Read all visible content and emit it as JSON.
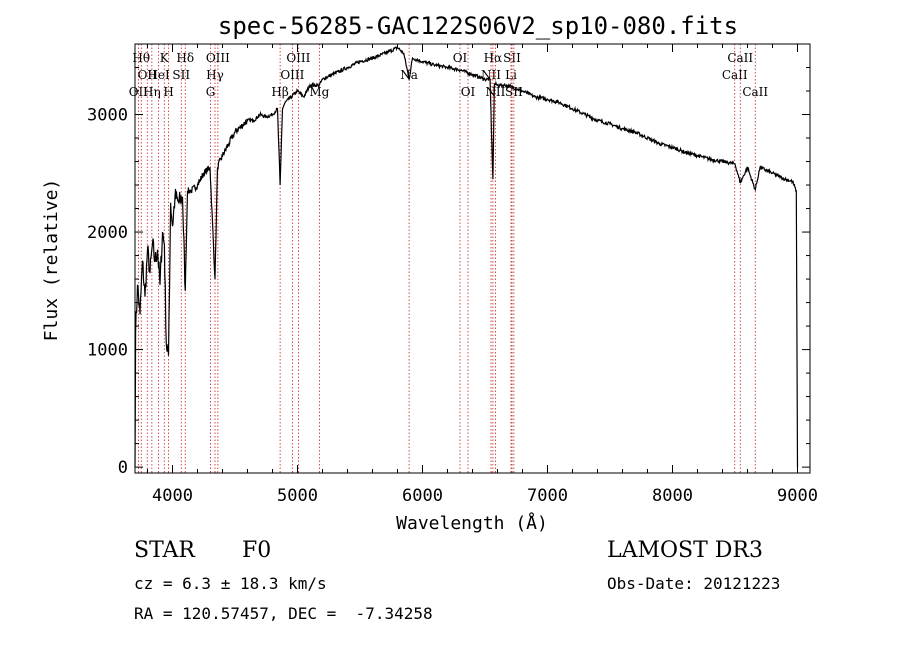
{
  "chart_data": {
    "type": "line",
    "title": "spec-56285-GAC122S06V2_sp10-080.fits",
    "xlabel": "Wavelength (Å)",
    "ylabel": "Flux (relative)",
    "xlim": [
      3700,
      9100
    ],
    "ylim": [
      -50,
      3600
    ],
    "xticks": [
      4000,
      5000,
      6000,
      7000,
      8000,
      9000
    ],
    "xtick_labels": [
      "4000",
      "5000",
      "6000",
      "7000",
      "8000",
      "9000"
    ],
    "yticks": [
      0,
      1000,
      2000,
      3000
    ],
    "ytick_labels": [
      "0",
      "1000",
      "2000",
      "3000"
    ],
    "spectrum": {
      "x": [
        3700,
        3705,
        3720,
        3740,
        3760,
        3780,
        3800,
        3820,
        3840,
        3860,
        3880,
        3900,
        3920,
        3935,
        3950,
        3968,
        3985,
        4000,
        4020,
        4050,
        4080,
        4102,
        4120,
        4150,
        4200,
        4250,
        4300,
        4340,
        4360,
        4400,
        4450,
        4500,
        4550,
        4600,
        4650,
        4700,
        4750,
        4800,
        4840,
        4861,
        4880,
        4900,
        4950,
        5000,
        5050,
        5100,
        5175,
        5200,
        5300,
        5400,
        5500,
        5600,
        5700,
        5800,
        5850,
        5893,
        5920,
        6000,
        6100,
        6200,
        6300,
        6400,
        6450,
        6500,
        6540,
        6563,
        6575,
        6600,
        6650,
        6700,
        6800,
        6900,
        7000,
        7100,
        7200,
        7300,
        7400,
        7500,
        7600,
        7700,
        7800,
        7900,
        8000,
        8100,
        8200,
        8300,
        8400,
        8500,
        8542,
        8600,
        8662,
        8700,
        8800,
        8900,
        8960,
        8990,
        9000
      ],
      "y": [
        0,
        1150,
        1550,
        1300,
        1750,
        1450,
        1850,
        1650,
        1900,
        1750,
        1850,
        1550,
        2000,
        1900,
        1050,
        950,
        2250,
        2050,
        2300,
        2250,
        2300,
        1500,
        2350,
        2350,
        2400,
        2500,
        2550,
        1600,
        2550,
        2650,
        2750,
        2850,
        2900,
        2950,
        2950,
        3000,
        2980,
        3000,
        3050,
        2400,
        3050,
        3100,
        3150,
        3200,
        3150,
        3250,
        3250,
        3300,
        3350,
        3400,
        3450,
        3480,
        3520,
        3570,
        3520,
        3300,
        3480,
        3450,
        3420,
        3400,
        3380,
        3340,
        3320,
        3300,
        3300,
        2450,
        3260,
        3250,
        3250,
        3240,
        3200,
        3150,
        3130,
        3100,
        3050,
        3000,
        2950,
        2920,
        2880,
        2850,
        2800,
        2750,
        2720,
        2680,
        2650,
        2620,
        2600,
        2580,
        2420,
        2550,
        2360,
        2550,
        2500,
        2450,
        2430,
        2350,
        0
      ]
    },
    "lines": [
      {
        "wl": 3727,
        "label": "OII",
        "row": 2
      },
      {
        "wl": 3750,
        "label": "Hθ",
        "row": 0
      },
      {
        "wl": 3798,
        "label": "OII",
        "row": 1
      },
      {
        "wl": 3835,
        "label": "Hη",
        "row": 2
      },
      {
        "wl": 3889,
        "label": "HeI",
        "row": 1
      },
      {
        "wl": 3934,
        "label": "K",
        "row": 0
      },
      {
        "wl": 3969,
        "label": "H",
        "row": 2
      },
      {
        "wl": 4070,
        "label": "SII",
        "row": 1
      },
      {
        "wl": 4102,
        "label": "Hδ",
        "row": 0
      },
      {
        "wl": 4304,
        "label": "G",
        "row": 2
      },
      {
        "wl": 4340,
        "label": "Hγ",
        "row": 1
      },
      {
        "wl": 4363,
        "label": "OIII",
        "row": 0
      },
      {
        "wl": 4861,
        "label": "Hβ",
        "row": 2
      },
      {
        "wl": 4959,
        "label": "OIII",
        "row": 1
      },
      {
        "wl": 5007,
        "label": "OIII",
        "row": 0
      },
      {
        "wl": 5175,
        "label": "Mg",
        "row": 2
      },
      {
        "wl": 5893,
        "label": "Na",
        "row": 1
      },
      {
        "wl": 6300,
        "label": "OI",
        "row": 0
      },
      {
        "wl": 6364,
        "label": "OI",
        "row": 2
      },
      {
        "wl": 6548,
        "label": "NII",
        "row": 1
      },
      {
        "wl": 6563,
        "label": "Hα",
        "row": 0
      },
      {
        "wl": 6583,
        "label": "NII",
        "row": 2
      },
      {
        "wl": 6708,
        "label": "Li",
        "row": 1
      },
      {
        "wl": 6716,
        "label": "SII",
        "row": 0
      },
      {
        "wl": 6731,
        "label": "SII",
        "row": 2
      },
      {
        "wl": 8498,
        "label": "CaII",
        "row": 1
      },
      {
        "wl": 8542,
        "label": "CaII",
        "row": 0
      },
      {
        "wl": 8662,
        "label": "CaII",
        "row": 2
      }
    ]
  },
  "info": {
    "class": "STAR",
    "subclass": "F0",
    "survey": "LAMOST DR3",
    "cz": "cz = 6.3 ± 18.3 km/s",
    "obs_date": "Obs-Date: 20121223",
    "radec": "RA = 120.57457, DEC =  -7.34258"
  }
}
